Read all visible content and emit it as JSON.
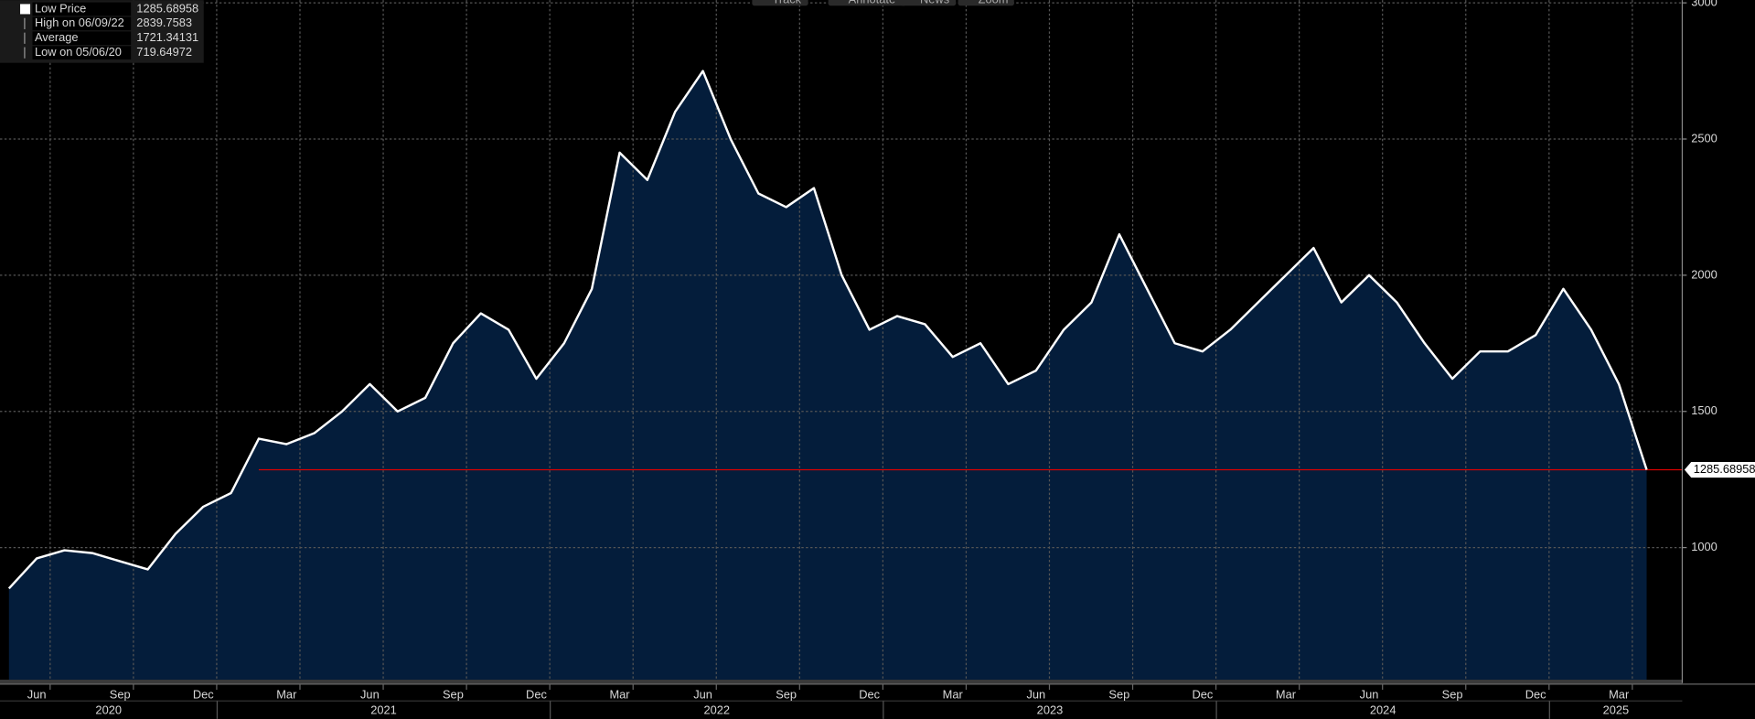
{
  "chart_data": {
    "type": "area",
    "toolbar": [
      "Track",
      "Annotate",
      "News",
      "Zoom"
    ],
    "legend": [
      {
        "label": "Low Price",
        "value": 1285.68958
      },
      {
        "label": "High on 06/09/22",
        "value": 2839.7583
      },
      {
        "label": "Average",
        "value": 1721.34131
      },
      {
        "label": "Low on 05/06/20",
        "value": 719.64972
      }
    ],
    "x": [
      "2020-05",
      "2020-06",
      "2020-07",
      "2020-08",
      "2020-09",
      "2020-10",
      "2020-11",
      "2020-12",
      "2021-01",
      "2021-02",
      "2021-03",
      "2021-04",
      "2021-05",
      "2021-06",
      "2021-07",
      "2021-08",
      "2021-09",
      "2021-10",
      "2021-11",
      "2021-12",
      "2022-01",
      "2022-02",
      "2022-03",
      "2022-04",
      "2022-05",
      "2022-06",
      "2022-07",
      "2022-08",
      "2022-09",
      "2022-10",
      "2022-11",
      "2022-12",
      "2023-01",
      "2023-02",
      "2023-03",
      "2023-04",
      "2023-05",
      "2023-06",
      "2023-07",
      "2023-08",
      "2023-09",
      "2023-10",
      "2023-11",
      "2023-12",
      "2024-01",
      "2024-02",
      "2024-03",
      "2024-04",
      "2024-05",
      "2024-06",
      "2024-07",
      "2024-08",
      "2024-09",
      "2024-10",
      "2024-11",
      "2024-12",
      "2025-01",
      "2025-02",
      "2025-03",
      "2025-04"
    ],
    "series": [
      {
        "name": "Low Price",
        "color": "#ffffff",
        "fill": "#041d3b",
        "values": [
          850,
          960,
          990,
          980,
          950,
          920,
          1050,
          1150,
          1200,
          1400,
          1380,
          1420,
          1500,
          1600,
          1500,
          1550,
          1750,
          1860,
          1800,
          1620,
          1750,
          1950,
          2450,
          2350,
          2600,
          2750,
          2500,
          2300,
          2250,
          2320,
          2000,
          1800,
          1850,
          1820,
          1700,
          1750,
          1600,
          1650,
          1800,
          1900,
          2150,
          1950,
          1750,
          1720,
          1800,
          1900,
          2000,
          2100,
          1900,
          2000,
          1900,
          1750,
          1620,
          1720,
          1720,
          1780,
          1950,
          1800,
          1600,
          1285.68958
        ]
      }
    ],
    "ylim": [
      515,
      3010
    ],
    "yticks": [
      1000,
      1500,
      2000,
      2500,
      3000
    ],
    "xticks": [
      {
        "value": "2020-06",
        "label": "Jun"
      },
      {
        "value": "2020-09",
        "label": "Sep"
      },
      {
        "value": "2020-12",
        "label": "Dec"
      },
      {
        "value": "2021-03",
        "label": "Mar"
      },
      {
        "value": "2021-06",
        "label": "Jun"
      },
      {
        "value": "2021-09",
        "label": "Sep"
      },
      {
        "value": "2021-12",
        "label": "Dec"
      },
      {
        "value": "2022-03",
        "label": "Mar"
      },
      {
        "value": "2022-06",
        "label": "Jun"
      },
      {
        "value": "2022-09",
        "label": "Sep"
      },
      {
        "value": "2022-12",
        "label": "Dec"
      },
      {
        "value": "2023-03",
        "label": "Mar"
      },
      {
        "value": "2023-06",
        "label": "Jun"
      },
      {
        "value": "2023-09",
        "label": "Sep"
      },
      {
        "value": "2023-12",
        "label": "Dec"
      },
      {
        "value": "2024-03",
        "label": "Mar"
      },
      {
        "value": "2024-06",
        "label": "Jun"
      },
      {
        "value": "2024-09",
        "label": "Sep"
      },
      {
        "value": "2024-12",
        "label": "Dec"
      },
      {
        "value": "2025-03",
        "label": "Mar"
      }
    ],
    "year_labels": [
      2020,
      2021,
      2022,
      2023,
      2024,
      2025
    ],
    "grid": true,
    "last_line_color": "#e00000"
  }
}
